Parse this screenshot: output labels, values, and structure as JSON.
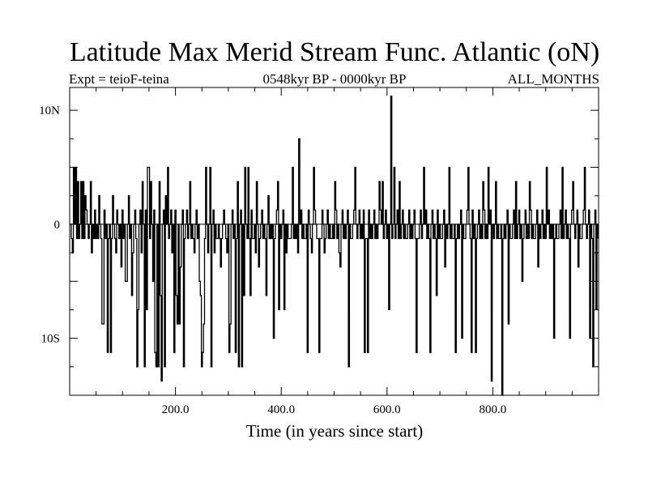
{
  "header": {
    "title": "Latitude Max Merid Stream Func. Atlantic (oN)",
    "experiment": "Expt = teioF-teina",
    "period": "0548kyr BP - 0000kyr BP",
    "season": "ALL_MONTHS"
  },
  "chart_data": {
    "type": "line",
    "title": "Latitude Max Merid Stream Func. Atlantic (oN)",
    "xlabel": "Time (in years since start)",
    "ylabel": "",
    "xlim": [
      0,
      1000
    ],
    "ylim": [
      -15,
      12
    ],
    "x_ticks": [
      {
        "value": 200,
        "label": "200.0"
      },
      {
        "value": 400,
        "label": "400.0"
      },
      {
        "value": 600,
        "label": "600.0"
      },
      {
        "value": 800,
        "label": "800.0"
      }
    ],
    "y_ticks": [
      {
        "value": 10,
        "label": "10N"
      },
      {
        "value": 0,
        "label": "0"
      },
      {
        "value": -10,
        "label": "10S"
      }
    ],
    "zero_line": true,
    "sample_interval_years": 2,
    "series": [
      {
        "name": "teioF-teina",
        "color": "#000000",
        "x_start": 1,
        "values": [
          0,
          -1.25,
          -2.5,
          5,
          0,
          1.25,
          -1.25,
          2.5,
          -1.25,
          0,
          3.75,
          -1.25,
          0,
          -1.25,
          2.5,
          1.25,
          0,
          -1.25,
          0,
          3.75,
          -2.5,
          0,
          -1.25,
          1.25,
          -1.25,
          0,
          -1.25,
          2.5,
          0,
          -1.25,
          -8.75,
          0,
          1.25,
          -1.25,
          0,
          -11.25,
          -1.25,
          0,
          1.25,
          -1.25,
          2.5,
          0,
          -1.25,
          -2.5,
          1.25,
          0,
          -1.25,
          0,
          -3.75,
          1.25,
          -1.25,
          0,
          -3.75,
          -5,
          0,
          1.25,
          -1.25,
          0,
          -6.25,
          -2.5,
          0,
          1.25,
          -1.25,
          -12.5,
          -1.25,
          0,
          1.25,
          -2.5,
          3.75,
          0,
          -1.25,
          1.25,
          -7.5,
          0,
          5,
          -1.25,
          -13.75,
          0,
          -5,
          1.25,
          -11.25,
          -12.5,
          0,
          -1.25,
          3.75,
          -6.25,
          -1.25,
          0,
          1.25,
          -1.25,
          2.5,
          0,
          -1.25,
          -1.25,
          0,
          1.25,
          -2.5,
          0,
          -1.25,
          1.25,
          -6.25,
          -1.25,
          0,
          -8.75,
          -3.75,
          0,
          1.25,
          -12.5,
          -1.25,
          0,
          1.25,
          -1.25,
          0,
          3.75,
          -1.25,
          0,
          -1.25,
          -2.5,
          0,
          1.25,
          -1.25,
          0,
          -5,
          -6.25,
          -11.25,
          -11.25,
          -12.5,
          -1.25,
          5,
          0,
          -2.5,
          0,
          -1.25,
          -12.5,
          0,
          1.25,
          -2.5,
          0,
          -1.25,
          -1.25,
          0,
          -1.25,
          2.5,
          -1.25,
          0,
          1.25,
          0,
          -1.25,
          -2.5,
          0,
          -1.25,
          -8.75,
          0,
          1.25,
          -1.25,
          0,
          -2.5,
          -1.25,
          3.75,
          -1.25,
          0,
          1.25,
          -1.25,
          0,
          -6.25,
          -1.25,
          0,
          -1.25,
          5,
          -1.25,
          0,
          1.25,
          -1.25,
          -1.25,
          0,
          -2.5,
          -1.25,
          0,
          -3.75,
          -1.25,
          0,
          1.25,
          -1.25,
          0,
          -1.25,
          -1.25,
          0,
          2.5,
          -1.25,
          0,
          -1.25,
          0,
          -1.25,
          -1.25,
          0,
          1.25,
          -1.25,
          -7.5,
          0,
          -1.25,
          0,
          1.25,
          -1.25,
          0,
          -2.5,
          0,
          -1.25,
          -1.25,
          -1.25,
          0,
          1.25,
          -1.25,
          0,
          -1.25,
          0,
          -2.5,
          -1.25,
          0,
          1.25,
          -1.25,
          0,
          -1.25,
          -1.25,
          0,
          -1.25,
          1.25,
          0,
          -1.25,
          -2.5,
          0,
          -1.25,
          1.25,
          0,
          -1.25,
          -1.25,
          0,
          -1.25,
          -1.25,
          1.25,
          0,
          -2.5,
          -1.25,
          0,
          1.25,
          -1.25,
          0,
          -1.25,
          -1.25,
          0,
          -1.25,
          0,
          1.25,
          -1.25,
          0,
          -2.5,
          -1.25,
          0,
          1.25,
          -1.25,
          0,
          -1.25,
          0,
          1.25,
          -1.25,
          0,
          -1.25,
          -1.25,
          0,
          1.25,
          -1.25,
          0,
          -1.25,
          0,
          1.25,
          -1.25,
          0,
          -1.25,
          1.25,
          0,
          -1.25,
          -1.25,
          0,
          1.25,
          -1.25,
          0,
          -1.25,
          0,
          1.25,
          -1.25,
          0,
          -1.25,
          0,
          -1.25,
          1.25,
          0,
          -1.25,
          -1.25,
          0,
          1.25,
          -1.25,
          0,
          -1.25,
          0,
          1.25,
          -1.25,
          0,
          -1.25,
          -1.25,
          0,
          1.25,
          -1.25,
          0,
          -1.25,
          0,
          1.25,
          -1.25,
          0,
          -1.25,
          -1.25,
          0,
          1.25,
          -1.25,
          0,
          -1.25,
          0,
          1.25,
          -1.25,
          0,
          -1.25,
          -1.25,
          0,
          1.25,
          -1.25,
          0,
          -1.25,
          0,
          1.25,
          -1.25,
          0,
          -1.25,
          -1.25,
          0,
          1.25,
          -1.25,
          0,
          -1.25,
          0,
          1.25,
          -1.25,
          0,
          -1.25,
          -1.25,
          0,
          1.25,
          -1.25,
          0,
          -1.25,
          0,
          1.25,
          -1.25,
          0,
          -1.25,
          -1.25,
          0,
          1.25,
          -1.25,
          0,
          -1.25,
          0,
          1.25,
          -1.25,
          0,
          -1.25,
          -1.25,
          0,
          1.25,
          -1.25,
          0,
          -1.25,
          0,
          1.25,
          -1.25,
          0,
          -1.25,
          -1.25,
          0,
          1.25,
          -1.25,
          0,
          -1.25,
          0,
          1.25,
          -1.25,
          0,
          -1.25,
          -1.25,
          0,
          1.25,
          -1.25,
          0,
          -1.25,
          0,
          1.25,
          -1.25,
          0,
          -1.25,
          -1.25,
          0,
          1.25,
          -1.25,
          0,
          -1.25,
          0,
          1.25,
          -1.25,
          0,
          -1.25,
          -1.25,
          0,
          1.25,
          -1.25,
          0,
          -1.25,
          0,
          1.25,
          -1.25,
          0,
          -1.25,
          -1.25,
          0,
          1.25,
          -1.25,
          0,
          -1.25,
          0,
          1.25,
          -1.25,
          0,
          -1.25,
          -1.25,
          0,
          1.25,
          -1.25,
          0,
          -1.25,
          0,
          1.25,
          -1.25,
          0,
          -1.25,
          -1.25,
          0,
          1.25,
          -1.25,
          0,
          -1.25,
          0,
          1.25,
          -1.25,
          0,
          -1.25,
          -1.25,
          0,
          1.25,
          -1.25,
          0,
          -1.25,
          0,
          1.25,
          -1.25,
          0,
          -1.25,
          -1.25,
          0,
          1.25,
          -1.25,
          0,
          -1.25,
          0,
          1.25,
          -1.25,
          0,
          -1.25,
          -1.25,
          0,
          1.25,
          -1.25,
          0,
          -1.25,
          0,
          1.25,
          -1.25,
          0,
          -1.25,
          -1.25,
          0,
          1.25,
          -1.25,
          0,
          -1.25
        ]
      }
    ],
    "spikes": [
      {
        "x": 10,
        "y": 5
      },
      {
        "x": 14,
        "y": 3.75
      },
      {
        "x": 24,
        "y": 3.75
      },
      {
        "x": 62,
        "y": -8.75
      },
      {
        "x": 76,
        "y": -11.25
      },
      {
        "x": 104,
        "y": -5
      },
      {
        "x": 110,
        "y": 2.5
      },
      {
        "x": 128,
        "y": -7.5
      },
      {
        "x": 140,
        "y": -12.5
      },
      {
        "x": 146,
        "y": 5
      },
      {
        "x": 152,
        "y": 3.75
      },
      {
        "x": 160,
        "y": -11.25
      },
      {
        "x": 166,
        "y": -12.5
      },
      {
        "x": 172,
        "y": -13.75
      },
      {
        "x": 178,
        "y": -12.5
      },
      {
        "x": 184,
        "y": 5
      },
      {
        "x": 196,
        "y": -11.25
      },
      {
        "x": 202,
        "y": -8.75
      },
      {
        "x": 248,
        "y": -12.5
      },
      {
        "x": 252,
        "y": -8.75
      },
      {
        "x": 264,
        "y": 5
      },
      {
        "x": 284,
        "y": -3.75
      },
      {
        "x": 300,
        "y": -11.25
      },
      {
        "x": 312,
        "y": -11.25
      },
      {
        "x": 318,
        "y": -12.5
      },
      {
        "x": 324,
        "y": -12.5
      },
      {
        "x": 330,
        "y": 5
      },
      {
        "x": 340,
        "y": -6.25
      },
      {
        "x": 352,
        "y": 3.75
      },
      {
        "x": 370,
        "y": -6.25
      },
      {
        "x": 384,
        "y": -10
      },
      {
        "x": 392,
        "y": 3.75
      },
      {
        "x": 404,
        "y": -7.5
      },
      {
        "x": 420,
        "y": 5
      },
      {
        "x": 432,
        "y": 7.5
      },
      {
        "x": 448,
        "y": -11.25
      },
      {
        "x": 460,
        "y": 5
      },
      {
        "x": 470,
        "y": -11.25
      },
      {
        "x": 500,
        "y": 3.75
      },
      {
        "x": 510,
        "y": -3.75
      },
      {
        "x": 526,
        "y": -12.5
      },
      {
        "x": 538,
        "y": 5
      },
      {
        "x": 556,
        "y": -11.25
      },
      {
        "x": 562,
        "y": -11.25
      },
      {
        "x": 584,
        "y": 3.75
      },
      {
        "x": 590,
        "y": 3.75
      },
      {
        "x": 602,
        "y": -7.5
      },
      {
        "x": 606,
        "y": 11.25
      },
      {
        "x": 612,
        "y": 5
      },
      {
        "x": 622,
        "y": 3.75
      },
      {
        "x": 654,
        "y": -11.25
      },
      {
        "x": 668,
        "y": 5
      },
      {
        "x": 680,
        "y": -11.25
      },
      {
        "x": 692,
        "y": -6.25
      },
      {
        "x": 708,
        "y": -3.75
      },
      {
        "x": 716,
        "y": 5
      },
      {
        "x": 728,
        "y": -11.25
      },
      {
        "x": 740,
        "y": -10
      },
      {
        "x": 752,
        "y": 5
      },
      {
        "x": 758,
        "y": -11.25
      },
      {
        "x": 766,
        "y": -11.25
      },
      {
        "x": 780,
        "y": 3.75
      },
      {
        "x": 790,
        "y": 5
      },
      {
        "x": 796,
        "y": -13.75
      },
      {
        "x": 804,
        "y": 3.75
      },
      {
        "x": 816,
        "y": -15
      },
      {
        "x": 828,
        "y": -8.75
      },
      {
        "x": 842,
        "y": 3.75
      },
      {
        "x": 854,
        "y": -5
      },
      {
        "x": 868,
        "y": 3.75
      },
      {
        "x": 884,
        "y": -3.75
      },
      {
        "x": 900,
        "y": 5
      },
      {
        "x": 914,
        "y": -10
      },
      {
        "x": 930,
        "y": 5
      },
      {
        "x": 944,
        "y": -10
      },
      {
        "x": 950,
        "y": 3.75
      },
      {
        "x": 960,
        "y": -3.75
      },
      {
        "x": 972,
        "y": 5
      },
      {
        "x": 982,
        "y": -10
      },
      {
        "x": 988,
        "y": -12.5
      },
      {
        "x": 994,
        "y": -7.5
      }
    ]
  }
}
